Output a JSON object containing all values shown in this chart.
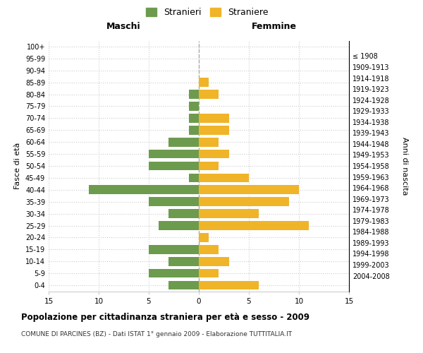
{
  "age_groups": [
    "0-4",
    "5-9",
    "10-14",
    "15-19",
    "20-24",
    "25-29",
    "30-34",
    "35-39",
    "40-44",
    "45-49",
    "50-54",
    "55-59",
    "60-64",
    "65-69",
    "70-74",
    "75-79",
    "80-84",
    "85-89",
    "90-94",
    "95-99",
    "100+"
  ],
  "birth_years": [
    "2004-2008",
    "1999-2003",
    "1994-1998",
    "1989-1993",
    "1984-1988",
    "1979-1983",
    "1974-1978",
    "1969-1973",
    "1964-1968",
    "1959-1963",
    "1954-1958",
    "1949-1953",
    "1944-1948",
    "1939-1943",
    "1934-1938",
    "1929-1933",
    "1924-1928",
    "1919-1923",
    "1914-1918",
    "1909-1913",
    "≤ 1908"
  ],
  "maschi": [
    3,
    5,
    3,
    5,
    0,
    4,
    3,
    5,
    11,
    1,
    5,
    5,
    3,
    1,
    1,
    1,
    1,
    0,
    0,
    0,
    0
  ],
  "femmine": [
    6,
    2,
    3,
    2,
    1,
    11,
    6,
    9,
    10,
    5,
    2,
    3,
    2,
    3,
    3,
    0,
    2,
    1,
    0,
    0,
    0
  ],
  "maschi_color": "#6d9b4e",
  "femmine_color": "#f0b429",
  "title": "Popolazione per cittadinanza straniera per età e sesso - 2009",
  "subtitle": "COMUNE DI PARCINES (BZ) - Dati ISTAT 1° gennaio 2009 - Elaborazione TUTTITALIA.IT",
  "xlabel_left": "Maschi",
  "xlabel_right": "Femmine",
  "ylabel_left": "Fasce di età",
  "ylabel_right": "Anni di nascita",
  "legend_stranieri": "Stranieri",
  "legend_straniere": "Straniere",
  "xlim": 15,
  "background_color": "#ffffff",
  "grid_color": "#cccccc",
  "bar_height": 0.75
}
